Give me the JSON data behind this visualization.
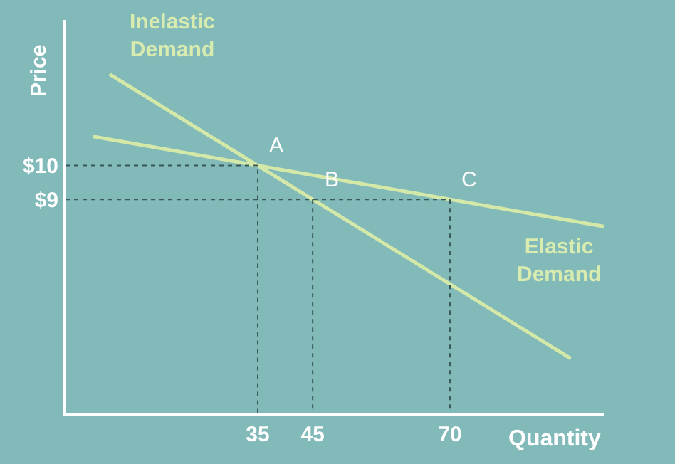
{
  "chart_data": {
    "type": "line",
    "xlabel": "Quantity",
    "ylabel": "Price",
    "xlim": [
      0,
      98
    ],
    "ylim": [
      2.7,
      14.3
    ],
    "xticks": [
      35,
      45,
      70
    ],
    "yticks": [
      {
        "value": 9,
        "label": "$9"
      },
      {
        "value": 10,
        "label": "$10"
      }
    ],
    "grid": false,
    "legend": false,
    "marker": "none",
    "line_style": "solid",
    "series": [
      {
        "name": "Inelastic Demand",
        "color": "#d4e8a8",
        "x": [
          8,
          92
        ],
        "values": [
          12.7,
          4.3
        ]
      },
      {
        "name": "Elastic Demand",
        "color": "#d4e8a8",
        "x": [
          5,
          98
        ],
        "values": [
          10.86,
          8.2
        ]
      },
      {
        "color": "#3a5a5a",
        "line_style": "dotted",
        "x": [
          0,
          35,
          35
        ],
        "values": [
          10,
          10,
          2.7
        ]
      },
      {
        "color": "#3a5a5a",
        "line_style": "dotted",
        "x": [
          0,
          70,
          70
        ],
        "values": [
          9,
          9,
          2.7
        ]
      },
      {
        "color": "#3a5a5a",
        "line_style": "dotted",
        "x": [
          45,
          45
        ],
        "values": [
          9,
          2.7
        ]
      }
    ],
    "annotations": [
      {
        "text": "A",
        "x": 35,
        "y": 10
      },
      {
        "text": "B",
        "x": 45,
        "y": 9
      },
      {
        "text": "C",
        "x": 70,
        "y": 9
      }
    ]
  }
}
